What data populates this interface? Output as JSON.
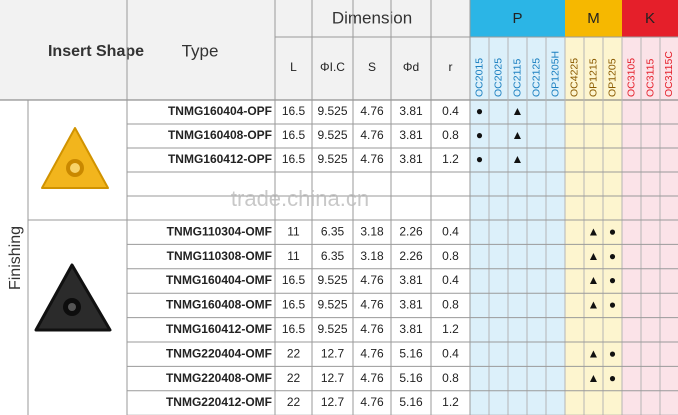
{
  "header": {
    "insert_shape": "Insert Shape",
    "type": "Type",
    "dimension": "Dimension",
    "dims": [
      "L",
      "ΦI.C",
      "S",
      "Φd",
      "r"
    ],
    "groups": [
      {
        "name": "P",
        "color": "#2bb5e6",
        "light": "#dcf0fa",
        "text": "#1a7fc0",
        "grades": [
          "OC2015",
          "OC2025",
          "OC2115",
          "OC2125",
          "OP1205H"
        ]
      },
      {
        "name": "M",
        "color": "#f6b800",
        "light": "#fdf5cf",
        "text": "#8a5a00",
        "grades": [
          "OC4225",
          "OP1215",
          "OP1205"
        ]
      },
      {
        "name": "K",
        "color": "#e51f2a",
        "light": "#fbe3e8",
        "text": "#e51f2a",
        "grades": [
          "OC3105",
          "OC3115",
          "OC3115C"
        ]
      }
    ]
  },
  "side_label": "Finishing",
  "watermark": "trade.china.cn",
  "rows": [
    {
      "type": "TNMG160404-OPF",
      "dims": [
        16.5,
        9.525,
        4.76,
        3.81,
        0.4
      ],
      "marks": [
        "●",
        null,
        "▲",
        null,
        null,
        null,
        null,
        null,
        null,
        null,
        null
      ]
    },
    {
      "type": "TNMG160408-OPF",
      "dims": [
        16.5,
        9.525,
        4.76,
        3.81,
        0.8
      ],
      "marks": [
        "●",
        null,
        "▲",
        null,
        null,
        null,
        null,
        null,
        null,
        null,
        null
      ]
    },
    {
      "type": "TNMG160412-OPF",
      "dims": [
        16.5,
        9.525,
        4.76,
        3.81,
        1.2
      ],
      "marks": [
        "●",
        null,
        "▲",
        null,
        null,
        null,
        null,
        null,
        null,
        null,
        null
      ]
    },
    {
      "type": "TNMG110304-OMF",
      "dims": [
        11,
        6.35,
        3.18,
        2.26,
        0.4
      ],
      "marks": [
        null,
        null,
        null,
        null,
        null,
        null,
        "▲",
        "●",
        null,
        null,
        null
      ]
    },
    {
      "type": "TNMG110308-OMF",
      "dims": [
        11,
        6.35,
        3.18,
        2.26,
        0.8
      ],
      "marks": [
        null,
        null,
        null,
        null,
        null,
        null,
        "▲",
        "●",
        null,
        null,
        null
      ]
    },
    {
      "type": "TNMG160404-OMF",
      "dims": [
        16.5,
        9.525,
        4.76,
        3.81,
        0.4
      ],
      "marks": [
        null,
        null,
        null,
        null,
        null,
        null,
        "▲",
        "●",
        null,
        null,
        null
      ]
    },
    {
      "type": "TNMG160408-OMF",
      "dims": [
        16.5,
        9.525,
        4.76,
        3.81,
        0.8
      ],
      "marks": [
        null,
        null,
        null,
        null,
        null,
        null,
        "▲",
        "●",
        null,
        null,
        null
      ]
    },
    {
      "type": "TNMG160412-OMF",
      "dims": [
        16.5,
        9.525,
        4.76,
        3.81,
        1.2
      ],
      "marks": [
        null,
        null,
        null,
        null,
        null,
        null,
        null,
        null,
        null,
        null,
        null
      ]
    },
    {
      "type": "TNMG220404-OMF",
      "dims": [
        22,
        12.7,
        4.76,
        5.16,
        0.4
      ],
      "marks": [
        null,
        null,
        null,
        null,
        null,
        null,
        "▲",
        "●",
        null,
        null,
        null
      ]
    },
    {
      "type": "TNMG220408-OMF",
      "dims": [
        22,
        12.7,
        4.76,
        5.16,
        0.8
      ],
      "marks": [
        null,
        null,
        null,
        null,
        null,
        null,
        "▲",
        "●",
        null,
        null,
        null
      ]
    },
    {
      "type": "TNMG220412-OMF",
      "dims": [
        22,
        12.7,
        4.76,
        5.16,
        1.2
      ],
      "marks": [
        null,
        null,
        null,
        null,
        null,
        null,
        null,
        null,
        null,
        null,
        null
      ]
    }
  ]
}
